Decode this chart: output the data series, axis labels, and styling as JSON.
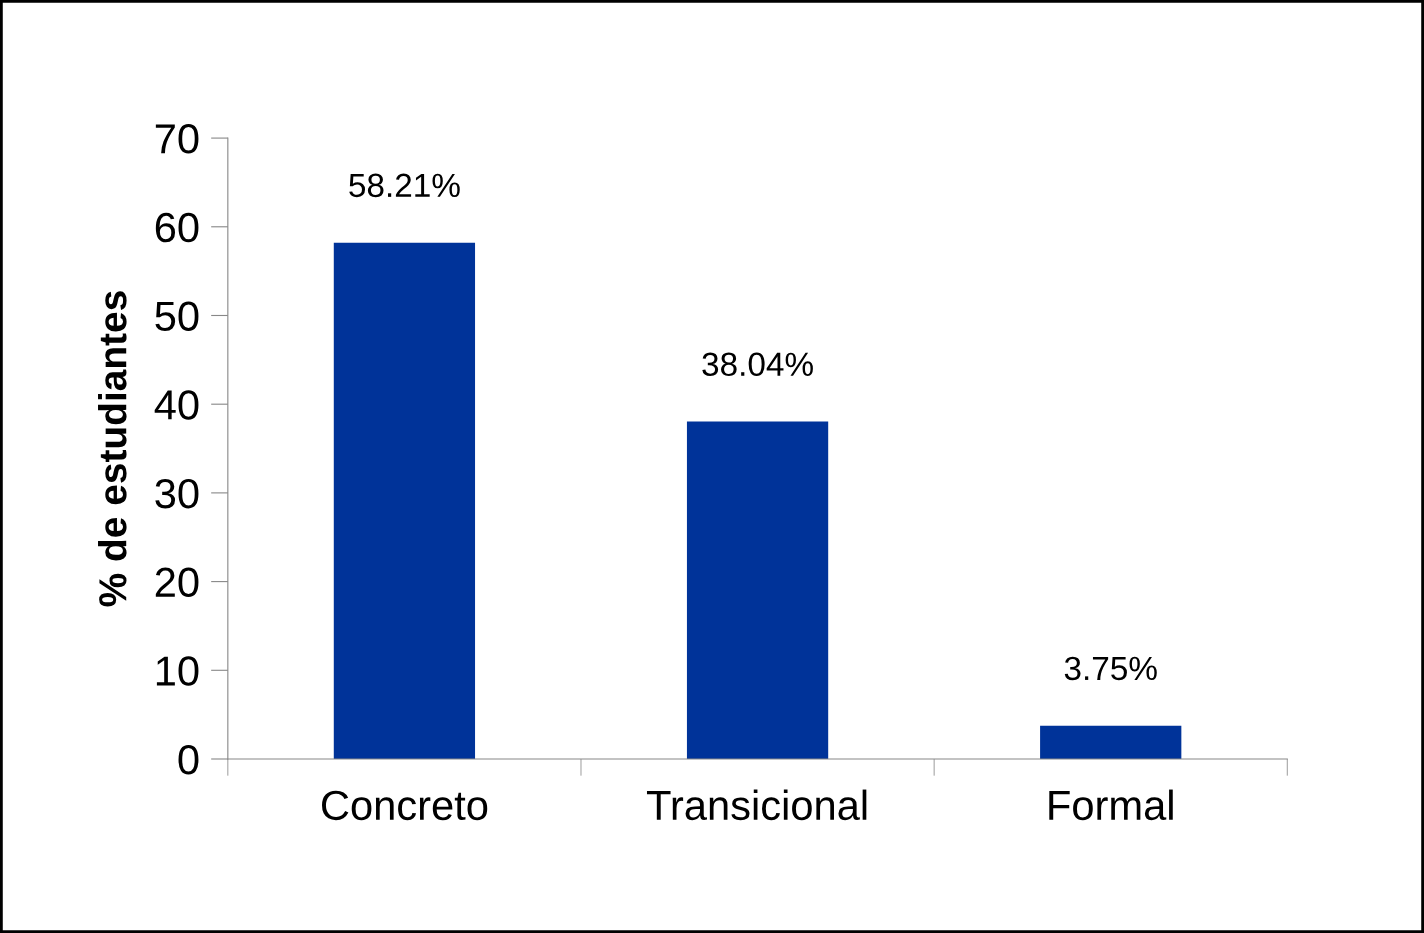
{
  "chart_data": {
    "type": "bar",
    "ylabel": "% de estudiantes",
    "categories": [
      "Concreto",
      "Transicional",
      "Formal"
    ],
    "values": [
      58.21,
      38.04,
      3.75
    ],
    "value_labels": [
      "58.21%",
      "38.04%",
      "3.75%"
    ],
    "color": "#003399",
    "ylim": [
      0,
      70
    ],
    "yticks": [
      0,
      10,
      20,
      30,
      40,
      50,
      60,
      70
    ],
    "grid": false,
    "legend": false
  }
}
